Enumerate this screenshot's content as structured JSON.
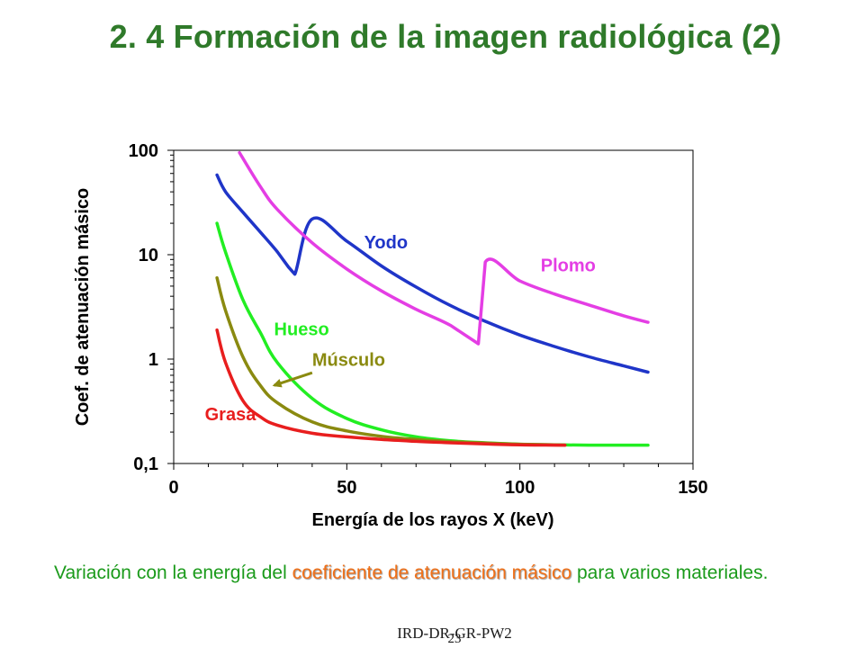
{
  "slide": {
    "title": "2. 4 Formación de la imagen radiológica (2)",
    "caption_prefix": "Variación con la energía del ",
    "caption_highlight": "coeficiente de atenuación másico",
    "caption_suffix": " para varios materiales.",
    "footer_code": "IRD-DR-GR-PW2",
    "footer_page": "23"
  },
  "chart_data": {
    "type": "line",
    "title": "",
    "xlabel": "Energía de los rayos X (keV)",
    "ylabel": "Coef. de atenuación másico",
    "xlim": [
      0,
      150
    ],
    "ylim": [
      0.1,
      100
    ],
    "yscale": "log",
    "grid": false,
    "legend": "inline labels",
    "xticks": [
      0,
      50,
      100,
      150
    ],
    "xtick_labels": [
      "0",
      "50",
      "100",
      "150"
    ],
    "yticks": [
      0.1,
      1,
      10,
      100
    ],
    "ytick_labels": [
      "0,1",
      "1",
      "10",
      "100"
    ],
    "series": [
      {
        "name": "Yodo",
        "color": "#1f35c8",
        "x": [
          12.5,
          15,
          20,
          25,
          30,
          33.17,
          33.17,
          35,
          40,
          50,
          60,
          70,
          80,
          90,
          100,
          110,
          120,
          130,
          137
        ],
        "y": [
          58,
          40,
          25.5,
          16.5,
          10.6,
          7.6,
          7.6,
          6.5,
          22,
          13.5,
          7.8,
          4.9,
          3.25,
          2.3,
          1.7,
          1.32,
          1.05,
          0.86,
          0.75
        ]
      },
      {
        "name": "Plomo",
        "color": "#e43ee4",
        "x": [
          19,
          25,
          30,
          40,
          50,
          60,
          70,
          80,
          88.0,
          88.0,
          90,
          100,
          110,
          120,
          130,
          137
        ],
        "y": [
          95,
          45,
          27,
          13,
          7.3,
          4.5,
          3.0,
          2.1,
          1.4,
          1.4,
          8.5,
          5.6,
          4.2,
          3.3,
          2.6,
          2.25
        ]
      },
      {
        "name": "Hueso",
        "color": "#22ee22",
        "x": [
          12.5,
          15,
          20,
          25,
          30,
          40,
          50,
          60,
          70,
          80,
          90,
          100,
          110,
          120,
          137
        ],
        "y": [
          20,
          10.5,
          3.7,
          1.8,
          0.92,
          0.42,
          0.27,
          0.21,
          0.18,
          0.165,
          0.158,
          0.153,
          0.151,
          0.15,
          0.15
        ]
      },
      {
        "name": "Músculo",
        "color": "#8a8a10",
        "x": [
          12.5,
          15,
          20,
          25,
          30,
          40,
          50,
          60,
          70,
          80,
          90,
          100,
          110,
          113
        ],
        "y": [
          6,
          2.9,
          1.05,
          0.56,
          0.38,
          0.25,
          0.205,
          0.182,
          0.17,
          0.162,
          0.157,
          0.153,
          0.151,
          0.15
        ]
      },
      {
        "name": "Grasa",
        "color": "#e81e1e",
        "x": [
          12.5,
          15,
          20,
          25,
          30,
          40,
          50,
          60,
          70,
          80,
          90,
          100,
          110,
          113
        ],
        "y": [
          1.9,
          0.92,
          0.4,
          0.28,
          0.232,
          0.195,
          0.18,
          0.17,
          0.163,
          0.158,
          0.154,
          0.151,
          0.15,
          0.15
        ]
      }
    ],
    "annotations": [
      {
        "text": "Yodo",
        "color": "#1f35c8",
        "x": 55,
        "y": 11.5
      },
      {
        "text": "Plomo",
        "color": "#e43ee4",
        "x": 106,
        "y": 6.9
      },
      {
        "text": "Hueso",
        "color": "#22ee22",
        "x": 29,
        "y": 1.7
      },
      {
        "text": "Músculo",
        "color": "#8a8a10",
        "x": 40,
        "y": 0.86
      },
      {
        "text": "Grasa",
        "color": "#e81e1e",
        "x": 9,
        "y": 0.26
      }
    ],
    "arrow": {
      "from": [
        40,
        0.74
      ],
      "to": [
        29,
        0.56
      ],
      "color": "#8a8a10"
    }
  }
}
